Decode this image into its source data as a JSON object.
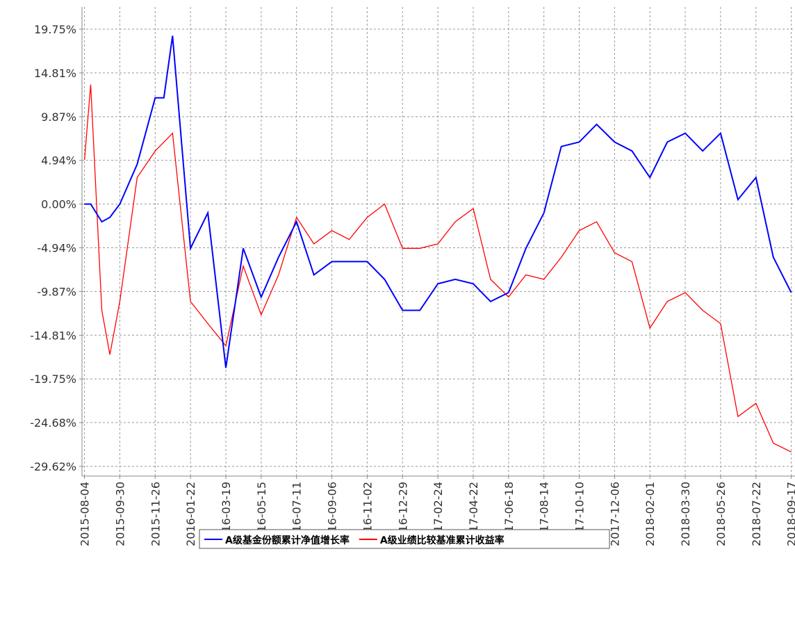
{
  "chart_data": {
    "type": "line",
    "x": [
      "2015-08-04",
      "2015-08-14",
      "2015-09-01",
      "2015-09-14",
      "2015-09-30",
      "2015-10-28",
      "2015-11-26",
      "2015-12-10",
      "2015-12-24",
      "2016-01-22",
      "2016-02-19",
      "2016-03-19",
      "2016-04-16",
      "2016-05-15",
      "2016-06-12",
      "2016-07-11",
      "2016-08-08",
      "2016-09-06",
      "2016-10-04",
      "2016-11-02",
      "2016-11-30",
      "2016-12-29",
      "2017-01-26",
      "2017-02-24",
      "2017-03-24",
      "2017-04-22",
      "2017-05-20",
      "2017-06-18",
      "2017-07-16",
      "2017-08-14",
      "2017-09-11",
      "2017-10-10",
      "2017-11-07",
      "2017-12-06",
      "2018-01-03",
      "2018-02-01",
      "2018-03-01",
      "2018-03-30",
      "2018-04-27",
      "2018-05-26",
      "2018-06-23",
      "2018-07-22",
      "2018-08-19",
      "2018-09-17"
    ],
    "series": [
      {
        "name": "A级基金份额累计净值增长率",
        "color": "#0000ff",
        "values": [
          0,
          0,
          -2,
          -1.5,
          0,
          4.5,
          12,
          12,
          19,
          -5,
          -1,
          -18.5,
          -5,
          -10.5,
          -6,
          -2,
          -8,
          -6.5,
          -6.5,
          -6.5,
          -8.5,
          -12,
          -12,
          -9,
          -8.5,
          -9,
          -11,
          -10,
          -5,
          -1,
          6.5,
          7,
          9,
          7,
          6,
          3,
          7,
          8,
          6,
          8,
          0.5,
          3,
          -6,
          -10
        ]
      },
      {
        "name": "A级业绩比较基准累计收益率",
        "color": "#ff0000",
        "values": [
          5,
          13.5,
          -12,
          -17,
          -11,
          3,
          6,
          7,
          8,
          -11,
          -13.5,
          -16,
          -7,
          -12.5,
          -8,
          -1.5,
          -4.5,
          -3,
          -4,
          -1.5,
          0,
          -5,
          -5,
          -4.5,
          -2,
          -0.5,
          -8.5,
          -10.5,
          -8,
          -8.5,
          -6,
          -3,
          -2,
          -5.5,
          -6.5,
          -14,
          -11,
          -10,
          -12,
          -13.5,
          -24,
          -22.5,
          -27,
          -28
        ]
      }
    ],
    "xlim": [
      "2015-07-31",
      "2018-09-23"
    ],
    "xticks": [
      "2015-08-04",
      "2015-09-30",
      "2015-11-26",
      "2016-01-22",
      "2016-03-19",
      "2016-05-15",
      "2016-07-11",
      "2016-09-06",
      "2016-11-02",
      "2016-12-29",
      "2017-02-24",
      "2017-04-22",
      "2017-06-18",
      "2017-08-14",
      "2017-10-10",
      "2017-12-06",
      "2018-02-01",
      "2018-03-30",
      "2018-05-26",
      "2018-07-22",
      "2018-09-17"
    ],
    "ylim": [
      -30.72,
      22.26
    ],
    "yticks": [
      {
        "value": 19.75,
        "label": "19.75%"
      },
      {
        "value": 14.81,
        "label": "14.81%"
      },
      {
        "value": 9.87,
        "label": "9.87%"
      },
      {
        "value": 4.94,
        "label": "4.94%"
      },
      {
        "value": 0,
        "label": "0.00%"
      },
      {
        "value": -4.94,
        "label": "-4.94%"
      },
      {
        "value": -9.87,
        "label": "-9.87%"
      },
      {
        "value": -14.81,
        "label": "-14.81%"
      },
      {
        "value": -19.75,
        "label": "-19.75%"
      },
      {
        "value": -24.68,
        "label": "-24.68%"
      },
      {
        "value": -29.62,
        "label": "-29.62%"
      }
    ],
    "grid": true
  }
}
